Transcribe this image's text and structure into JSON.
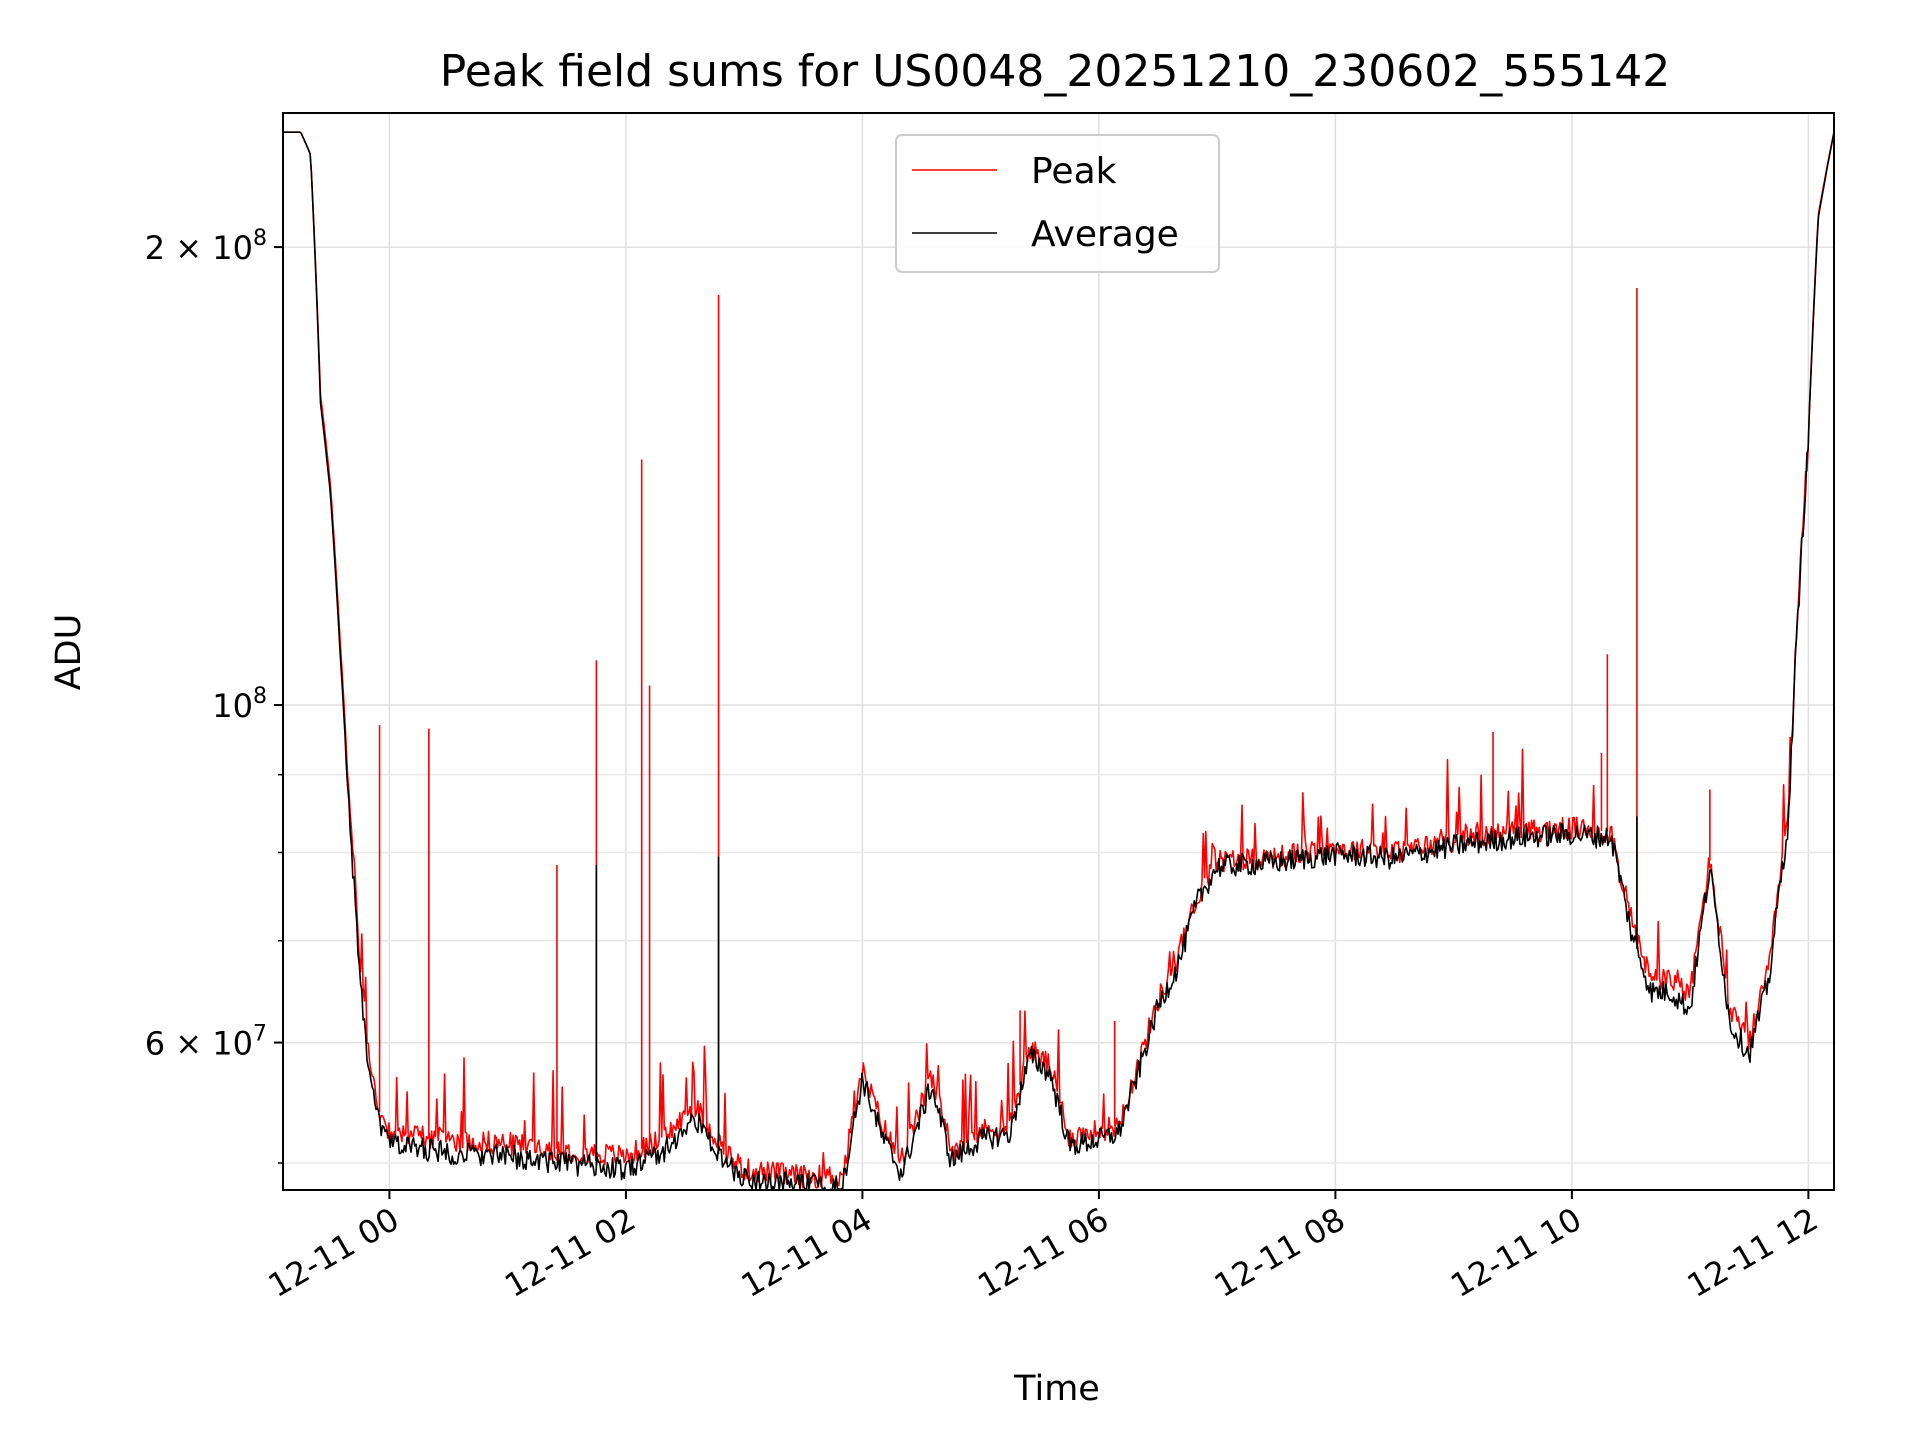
{
  "chart_data": {
    "type": "line",
    "title": "Peak field sums for US0048_20251210_230602_555142",
    "xlabel": "Time",
    "ylabel": "ADU",
    "yscale": "log",
    "xlim": [
      "2025-12-10 23:06",
      "2025-12-11 12:13"
    ],
    "ylim": [
      48000000,
      245000000
    ],
    "grid": true,
    "legend_position": "top-center",
    "x_tick_labels": [
      "12-11 00",
      "12-11 02",
      "12-11 04",
      "12-11 06",
      "12-11 08",
      "12-11 10",
      "12-11 12"
    ],
    "y_major_ticks": [
      {
        "value": 60000000,
        "label": "6 × 10^7"
      },
      {
        "value": 100000000,
        "label": "10^8"
      },
      {
        "value": 200000000,
        "label": "2 × 10^8"
      }
    ],
    "y_minor_ticks": [
      50000000,
      70000000,
      80000000,
      90000000
    ],
    "series": [
      {
        "name": "Peak",
        "color": "#ff0000",
        "points": [
          [
            "2025-12-10 23:06",
            238000000
          ],
          [
            "2025-12-10 23:15",
            238000000
          ],
          [
            "2025-12-10 23:20",
            230000000
          ],
          [
            "2025-12-10 23:25",
            160000000
          ],
          [
            "2025-12-10 23:30",
            140000000
          ],
          [
            "2025-12-10 23:35",
            110000000
          ],
          [
            "2025-12-10 23:40",
            85000000
          ],
          [
            "2025-12-10 23:45",
            68000000
          ],
          [
            "2025-12-10 23:50",
            58000000
          ],
          [
            "2025-12-10 23:55",
            54000000
          ],
          [
            "2025-12-11 00:00",
            52500000
          ],
          [
            "2025-12-11 00:30",
            51800000
          ],
          [
            "2025-12-11 01:00",
            51500000
          ],
          [
            "2025-12-11 01:30",
            51000000
          ],
          [
            "2025-12-11 02:00",
            50500000
          ],
          [
            "2025-12-11 02:20",
            52000000
          ],
          [
            "2025-12-11 02:35",
            54500000
          ],
          [
            "2025-12-11 02:50",
            51000000
          ],
          [
            "2025-12-11 03:00",
            49500000
          ],
          [
            "2025-12-11 03:30",
            49000000
          ],
          [
            "2025-12-11 03:50",
            49000000
          ],
          [
            "2025-12-11 04:00",
            57500000
          ],
          [
            "2025-12-11 04:10",
            53000000
          ],
          [
            "2025-12-11 04:20",
            50000000
          ],
          [
            "2025-12-11 04:35",
            57000000
          ],
          [
            "2025-12-11 04:45",
            51000000
          ],
          [
            "2025-12-11 05:00",
            52500000
          ],
          [
            "2025-12-11 05:15",
            53000000
          ],
          [
            "2025-12-11 05:25",
            59500000
          ],
          [
            "2025-12-11 05:35",
            58000000
          ],
          [
            "2025-12-11 05:45",
            52000000
          ],
          [
            "2025-12-11 06:00",
            52500000
          ],
          [
            "2025-12-11 06:10",
            53000000
          ],
          [
            "2025-12-11 06:20",
            58000000
          ],
          [
            "2025-12-11 06:30",
            64000000
          ],
          [
            "2025-12-11 06:40",
            68000000
          ],
          [
            "2025-12-11 06:50",
            75000000
          ],
          [
            "2025-12-11 07:00",
            79000000
          ],
          [
            "2025-12-11 07:30",
            79500000
          ],
          [
            "2025-12-11 08:00",
            80500000
          ],
          [
            "2025-12-11 08:30",
            80000000
          ],
          [
            "2025-12-11 09:00",
            81500000
          ],
          [
            "2025-12-11 09:30",
            82500000
          ],
          [
            "2025-12-11 10:00",
            83000000
          ],
          [
            "2025-12-11 10:20",
            82500000
          ],
          [
            "2025-12-11 10:30",
            72000000
          ],
          [
            "2025-12-11 10:40",
            66000000
          ],
          [
            "2025-12-11 10:50",
            66000000
          ],
          [
            "2025-12-11 11:00",
            64500000
          ],
          [
            "2025-12-11 11:10",
            79000000
          ],
          [
            "2025-12-11 11:20",
            63000000
          ],
          [
            "2025-12-11 11:30",
            60000000
          ],
          [
            "2025-12-11 11:40",
            67000000
          ],
          [
            "2025-12-11 11:50",
            85000000
          ],
          [
            "2025-12-11 12:00",
            150000000
          ],
          [
            "2025-12-11 12:05",
            210000000
          ],
          [
            "2025-12-11 12:13",
            238000000
          ]
        ],
        "spikes": [
          [
            "2025-12-10 23:55",
            97000000
          ],
          [
            "2025-12-11 00:20",
            96500000
          ],
          [
            "2025-12-11 01:25",
            78500000
          ],
          [
            "2025-12-11 01:45",
            107000000
          ],
          [
            "2025-12-11 02:08",
            145000000
          ],
          [
            "2025-12-11 02:12",
            103000000
          ],
          [
            "2025-12-11 02:47",
            186000000
          ],
          [
            "2025-12-11 05:20",
            63000000
          ],
          [
            "2025-12-11 06:08",
            62000000
          ],
          [
            "2025-12-11 09:20",
            96000000
          ],
          [
            "2025-12-11 10:15",
            93000000
          ],
          [
            "2025-12-11 10:18",
            108000000
          ],
          [
            "2025-12-11 10:33",
            188000000
          ],
          [
            "2025-12-11 11:10",
            88000000
          ]
        ]
      },
      {
        "name": "Average",
        "color": "#000000",
        "points": [
          [
            "2025-12-10 23:06",
            238000000
          ],
          [
            "2025-12-10 23:15",
            238000000
          ],
          [
            "2025-12-10 23:20",
            230000000
          ],
          [
            "2025-12-10 23:25",
            158000000
          ],
          [
            "2025-12-10 23:30",
            138000000
          ],
          [
            "2025-12-10 23:35",
            108000000
          ],
          [
            "2025-12-10 23:40",
            83000000
          ],
          [
            "2025-12-10 23:45",
            66000000
          ],
          [
            "2025-12-10 23:50",
            56500000
          ],
          [
            "2025-12-10 23:55",
            53000000
          ],
          [
            "2025-12-11 00:00",
            51500000
          ],
          [
            "2025-12-11 00:30",
            50800000
          ],
          [
            "2025-12-11 01:00",
            50500000
          ],
          [
            "2025-12-11 01:30",
            50000000
          ],
          [
            "2025-12-11 02:00",
            49500000
          ],
          [
            "2025-12-11 02:20",
            51000000
          ],
          [
            "2025-12-11 02:35",
            53500000
          ],
          [
            "2025-12-11 02:50",
            50000000
          ],
          [
            "2025-12-11 03:00",
            48800000
          ],
          [
            "2025-12-11 03:30",
            48400000
          ],
          [
            "2025-12-11 03:50",
            48300000
          ],
          [
            "2025-12-11 04:00",
            56800000
          ],
          [
            "2025-12-11 04:10",
            52000000
          ],
          [
            "2025-12-11 04:20",
            49200000
          ],
          [
            "2025-12-11 04:35",
            56200000
          ],
          [
            "2025-12-11 04:45",
            50200000
          ],
          [
            "2025-12-11 05:00",
            51800000
          ],
          [
            "2025-12-11 05:15",
            52300000
          ],
          [
            "2025-12-11 05:25",
            58800000
          ],
          [
            "2025-12-11 05:35",
            57300000
          ],
          [
            "2025-12-11 05:45",
            51300000
          ],
          [
            "2025-12-11 06:00",
            51800000
          ],
          [
            "2025-12-11 06:10",
            52300000
          ],
          [
            "2025-12-11 06:20",
            57300000
          ],
          [
            "2025-12-11 06:30",
            63300000
          ],
          [
            "2025-12-11 06:40",
            67300000
          ],
          [
            "2025-12-11 06:50",
            74300000
          ],
          [
            "2025-12-11 07:00",
            78300000
          ],
          [
            "2025-12-11 07:30",
            78800000
          ],
          [
            "2025-12-11 08:00",
            79800000
          ],
          [
            "2025-12-11 08:30",
            79300000
          ],
          [
            "2025-12-11 09:00",
            80800000
          ],
          [
            "2025-12-11 09:30",
            81800000
          ],
          [
            "2025-12-11 10:00",
            82300000
          ],
          [
            "2025-12-11 10:20",
            81800000
          ],
          [
            "2025-12-11 10:30",
            71000000
          ],
          [
            "2025-12-11 10:40",
            64800000
          ],
          [
            "2025-12-11 10:50",
            64800000
          ],
          [
            "2025-12-11 11:00",
            63000000
          ],
          [
            "2025-12-11 11:10",
            78000000
          ],
          [
            "2025-12-11 11:20",
            61800000
          ],
          [
            "2025-12-11 11:30",
            59000000
          ],
          [
            "2025-12-11 11:40",
            66000000
          ],
          [
            "2025-12-11 11:50",
            84000000
          ],
          [
            "2025-12-11 12:00",
            149000000
          ],
          [
            "2025-12-11 12:05",
            209000000
          ],
          [
            "2025-12-11 12:13",
            238000000
          ]
        ],
        "spikes": [
          [
            "2025-12-11 01:45",
            78500000
          ],
          [
            "2025-12-11 02:47",
            79500000
          ],
          [
            "2025-12-11 10:33",
            84500000
          ]
        ]
      }
    ]
  }
}
